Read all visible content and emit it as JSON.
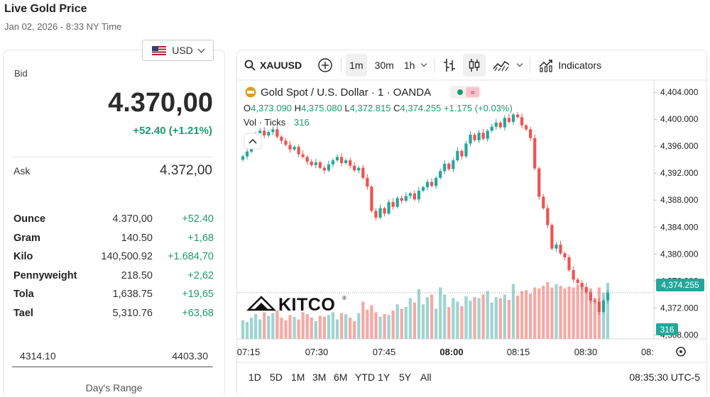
{
  "header": {
    "title": "Live Gold Price",
    "subtitle": "Jan 02, 2026 - 8:33 NY Time"
  },
  "currency": {
    "selected": "USD",
    "icon": "us-flag-icon"
  },
  "bid": {
    "label": "Bid",
    "value": "4.370,00",
    "change": "+52.40 (+1.21%)"
  },
  "ask": {
    "label": "Ask",
    "value": "4.372,00"
  },
  "units": [
    {
      "name": "Ounce",
      "price": "4.370,00",
      "change": "+52.40"
    },
    {
      "name": "Gram",
      "price": "140.50",
      "change": "+1,68"
    },
    {
      "name": "Kilo",
      "price": "140,500.92",
      "change": "+1.684,70"
    },
    {
      "name": "Pennyweight",
      "price": "218.50",
      "change": "+2,62"
    },
    {
      "name": "Tola",
      "price": "1,638.75",
      "change": "+19,65"
    },
    {
      "name": "Tael",
      "price": "5,310.76",
      "change": "+63,68"
    }
  ],
  "range": {
    "low": "4314.10",
    "high": "4403.30",
    "label": "Day's Range"
  },
  "toolbar": {
    "symbol": "XAUUSD",
    "intervals": [
      "1m",
      "30m",
      "1h"
    ],
    "active_interval": "1m",
    "indicators_label": "Indicators"
  },
  "legend": {
    "title": "Gold Spot / U.S. Dollar · 1 · OANDA",
    "ohlc": [
      {
        "k": "O",
        "v": "4,373.090"
      },
      {
        "k": "H",
        "v": "4,375.080"
      },
      {
        "k": "L",
        "v": "4,372.815"
      },
      {
        "k": "C",
        "v": "4,374.255"
      }
    ],
    "change": "+1.175 (+0.03%)",
    "vol_label": "Vol · Ticks",
    "vol_value": "316"
  },
  "watermark": "KITCO",
  "colors": {
    "up": "#26a69a",
    "down": "#ef5350",
    "vol_up": "#9ed4d0",
    "vol_down": "#f5a9a6",
    "accent": "#1f9a6f"
  },
  "chart_data": {
    "type": "candlestick",
    "y_ticks": [
      "4,404.000",
      "4,400.000",
      "4,396.000",
      "4,392.000",
      "4,388.000",
      "4,384.000",
      "4,380.000",
      "4,376.000",
      "4,372.000",
      "4,368.000"
    ],
    "ylim": [
      4367.4,
      4405.6
    ],
    "x_ticks": [
      {
        "label": "07:15",
        "bold": false
      },
      {
        "label": "07:30",
        "bold": false
      },
      {
        "label": "07:45",
        "bold": false
      },
      {
        "label": "08:00",
        "bold": true
      },
      {
        "label": "08:15",
        "bold": false
      },
      {
        "label": "08:30",
        "bold": false
      },
      {
        "label": "08:",
        "bold": false
      }
    ],
    "last_price": "4,374.255",
    "last_price_value": 4374.255,
    "last_volume": "316",
    "closes": [
      4394.5,
      4395.2,
      4396.8,
      4397.9,
      4398.3,
      4397.6,
      4398.1,
      4398.5,
      4397.4,
      4396.8,
      4396.2,
      4395.5,
      4395.9,
      4394.8,
      4394.4,
      4393.7,
      4393.2,
      4393.6,
      4392.8,
      4392.4,
      4393.3,
      4393.9,
      4394.4,
      4393.5,
      4393.9,
      4393.1,
      4392.4,
      4392.8,
      4391.3,
      4390.0,
      4386.4,
      4385.4,
      4386.8,
      4386.0,
      4387.7,
      4387.0,
      4388.3,
      4387.9,
      4388.6,
      4389.0,
      4388.1,
      4389.4,
      4389.9,
      4390.7,
      4390.1,
      4391.3,
      4392.3,
      4393.4,
      4392.6,
      4393.9,
      4395.3,
      4394.5,
      4396.4,
      4397.7,
      4396.9,
      4398.0,
      4397.1,
      4398.3,
      4398.9,
      4399.5,
      4398.8,
      4400.2,
      4399.6,
      4400.7,
      4400.3,
      4399.1,
      4398.5,
      4397.2,
      4392.7,
      4388.5,
      4386.8,
      4384.3,
      4380.8,
      4381.4,
      4380.1,
      4379.5,
      4377.6,
      4376.2,
      4375.7,
      4375.1,
      4374.3,
      4373.1,
      4372.9,
      4371.4,
      4373.1,
      4374.255
    ],
    "volumes": [
      105,
      95,
      120,
      140,
      110,
      150,
      130,
      145,
      160,
      120,
      105,
      135,
      125,
      110,
      150,
      140,
      120,
      100,
      130,
      125,
      135,
      150,
      110,
      145,
      140,
      120,
      100,
      145,
      210,
      165,
      190,
      150,
      125,
      140,
      135,
      160,
      195,
      170,
      180,
      230,
      205,
      280,
      195,
      235,
      250,
      170,
      290,
      250,
      180,
      230,
      210,
      185,
      240,
      215,
      235,
      230,
      250,
      270,
      205,
      235,
      230,
      250,
      220,
      310,
      245,
      270,
      275,
      255,
      290,
      285,
      300,
      320,
      290,
      310,
      300,
      285,
      295,
      290,
      305,
      310,
      275,
      285,
      230,
      290,
      260,
      316
    ]
  },
  "bottom_bar": {
    "ranges": [
      "1D",
      "5D",
      "1M",
      "3M",
      "6M",
      "YTD",
      "1Y",
      "5Y",
      "All"
    ],
    "time": "08:35:30 UTC-5"
  }
}
